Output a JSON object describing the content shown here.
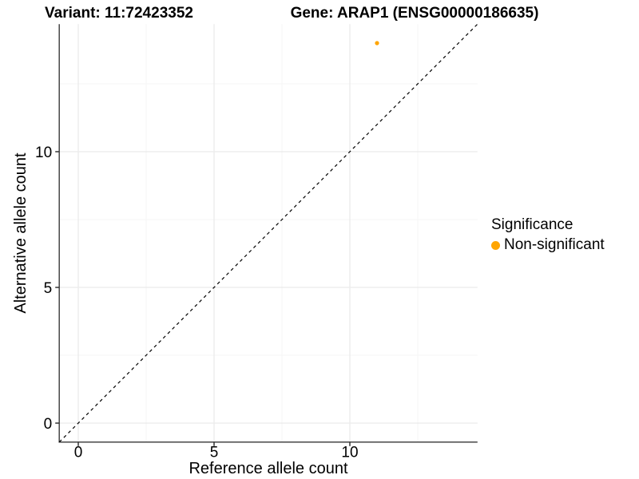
{
  "chart_data": {
    "type": "scatter",
    "title_left": "Variant: 11:72423352",
    "title_right": "Gene: ARAP1 (ENSG00000186635)",
    "xlabel": "Reference allele count",
    "ylabel": "Alternative allele count",
    "xlim": [
      -0.7,
      14.7
    ],
    "ylim": [
      -0.7,
      14.7
    ],
    "x_ticks": [
      0,
      5,
      10
    ],
    "y_ticks": [
      0,
      5,
      10
    ],
    "x_minor_gridlines": [
      2.5,
      7.5,
      12.5
    ],
    "y_minor_gridlines": [
      2.5,
      7.5,
      12.5
    ],
    "grid": "on",
    "legend_position": "right",
    "identity_line": {
      "type": "dashed",
      "slope": 1,
      "intercept": 0,
      "color": "#000000"
    },
    "series": [
      {
        "name": "Non-significant",
        "color": "#FFA500",
        "points": [
          {
            "x": 11,
            "y": 14
          }
        ]
      }
    ],
    "legend": {
      "title": "Significance",
      "items": [
        {
          "label": "Non-significant",
          "color": "#FFA500"
        }
      ]
    },
    "colors": {
      "background": "#ffffff",
      "major_gridline": "#ebebeb",
      "minor_gridline": "#f5f5f5",
      "axis_line": "#464646",
      "tick_mark": "#333333",
      "point": "#FFA500"
    }
  }
}
